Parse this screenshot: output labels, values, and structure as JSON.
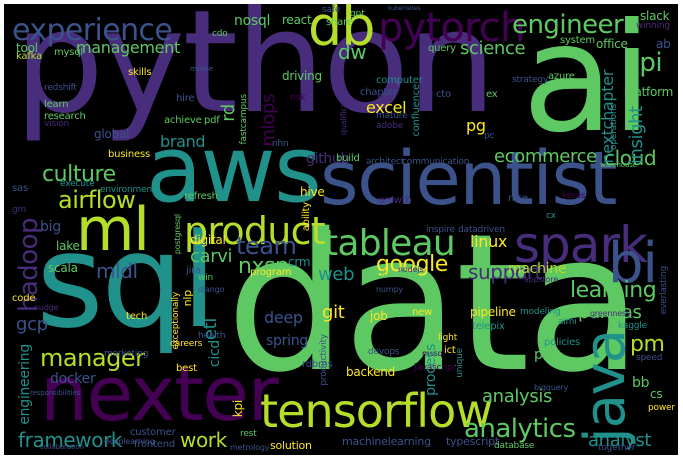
{
  "title": "",
  "palette": {
    "background": "#000000",
    "green": "#5ec962",
    "lime": "#b5de2b",
    "yellow": "#fde725",
    "teal": "#21918c",
    "blue": "#3b528b",
    "purple": "#440154",
    "indigo": "#472d7b",
    "cyan": "#1fa187"
  },
  "words": [
    {
      "text": "python",
      "color": "#472d7b"
    },
    {
      "text": "data",
      "color": "#5ec962"
    },
    {
      "text": "ai",
      "color": "#5ec962"
    },
    {
      "text": "sql",
      "color": "#21918c"
    },
    {
      "text": "aws",
      "color": "#21918c"
    },
    {
      "text": "scientist",
      "color": "#3b528b"
    },
    {
      "text": "nexter",
      "color": "#440154"
    },
    {
      "text": "tensorflow",
      "color": "#b5de2b"
    },
    {
      "text": "ml",
      "color": "#b5de2b"
    },
    {
      "text": "spark",
      "color": "#472d7b"
    },
    {
      "text": "java",
      "color": "#21918c"
    },
    {
      "text": "bi",
      "color": "#3b528b"
    },
    {
      "text": "product",
      "color": "#b5de2b"
    },
    {
      "text": "tableau",
      "color": "#5ec962"
    },
    {
      "text": "pytorch",
      "color": "#440154"
    },
    {
      "text": "db",
      "color": "#b5de2b"
    },
    {
      "text": "experience",
      "color": "#3b528b"
    },
    {
      "text": "engineer",
      "color": "#5ec962"
    },
    {
      "text": "api",
      "color": "#5ec962"
    },
    {
      "text": "analytics",
      "color": "#5ec962"
    },
    {
      "text": "hadoop",
      "color": "#472d7b"
    },
    {
      "text": "airflow",
      "color": "#b5de2b"
    },
    {
      "text": "team",
      "color": "#3b528b"
    },
    {
      "text": "google",
      "color": "#fde725"
    },
    {
      "text": "manager",
      "color": "#b5de2b"
    },
    {
      "text": "culture",
      "color": "#5ec962"
    },
    {
      "text": "mldl",
      "color": "#3b528b"
    },
    {
      "text": "carvi",
      "color": "#5ec962"
    },
    {
      "text": "nxsp",
      "color": "#5ec962"
    },
    {
      "text": "learning",
      "color": "#5ec962"
    },
    {
      "text": "pandas",
      "color": "#5ec962"
    },
    {
      "text": "support",
      "color": "#472d7b"
    },
    {
      "text": "framework",
      "color": "#21918c"
    },
    {
      "text": "work",
      "color": "#b5de2b"
    },
    {
      "text": "analysis",
      "color": "#5ec962"
    },
    {
      "text": "analyst",
      "color": "#21918c"
    },
    {
      "text": "cloud",
      "color": "#5ec962"
    },
    {
      "text": "ecommerce",
      "color": "#5ec962"
    },
    {
      "text": "science",
      "color": "#5ec962"
    },
    {
      "text": "management",
      "color": "#5ec962"
    },
    {
      "text": "dw",
      "color": "#5ec962"
    },
    {
      "text": "excel",
      "color": "#fde725"
    },
    {
      "text": "mlops",
      "color": "#440154"
    },
    {
      "text": "rd",
      "color": "#5ec962"
    },
    {
      "text": "brand",
      "color": "#21918c"
    },
    {
      "text": "insight",
      "color": "#21918c"
    },
    {
      "text": "nextchapter",
      "color": "#21918c"
    },
    {
      "text": "pg",
      "color": "#fde725"
    },
    {
      "text": "pm",
      "color": "#b5de2b"
    },
    {
      "text": "git",
      "color": "#fde725"
    },
    {
      "text": "etl",
      "color": "#21918c"
    },
    {
      "text": "deep",
      "color": "#3b528b"
    },
    {
      "text": "spring",
      "color": "#3b528b"
    },
    {
      "text": "cicd",
      "color": "#21918c"
    },
    {
      "text": "gcp",
      "color": "#3b528b"
    },
    {
      "text": "docker",
      "color": "#3b528b"
    },
    {
      "text": "engineering",
      "color": "#21918c"
    },
    {
      "text": "web",
      "color": "#21918c"
    },
    {
      "text": "linux",
      "color": "#fde725"
    },
    {
      "text": "machine",
      "color": "#b5de2b"
    },
    {
      "text": "github",
      "color": "#472d7b"
    },
    {
      "text": "nosql",
      "color": "#5ec962"
    },
    {
      "text": "react",
      "color": "#5ec962"
    },
    {
      "text": "share",
      "color": "#5ec962"
    },
    {
      "text": "safe",
      "color": "#3b528b"
    },
    {
      "text": "kubernetes",
      "color": "#3b528b"
    },
    {
      "text": "slack",
      "color": "#5ec962"
    },
    {
      "text": "winning",
      "color": "#472d7b"
    },
    {
      "text": "tool",
      "color": "#5ec962"
    },
    {
      "text": "mysql",
      "color": "#5ec962"
    },
    {
      "text": "kafka",
      "color": "#b5de2b"
    },
    {
      "text": "cdo",
      "color": "#5ec962"
    },
    {
      "text": "driving",
      "color": "#5ec962"
    },
    {
      "text": "computer",
      "color": "#21918c"
    },
    {
      "text": "query",
      "color": "#5ec962"
    },
    {
      "text": "system",
      "color": "#5ec962"
    },
    {
      "text": "office",
      "color": "#5ec962"
    },
    {
      "text": "ab",
      "color": "#3b528b"
    },
    {
      "text": "skills",
      "color": "#fde725"
    },
    {
      "text": "redshift",
      "color": "#3b528b"
    },
    {
      "text": "learn",
      "color": "#5ec962"
    },
    {
      "text": "research",
      "color": "#5ec962"
    },
    {
      "text": "vision",
      "color": "#472d7b"
    },
    {
      "text": "hire",
      "color": "#3b528b"
    },
    {
      "text": "chapter",
      "color": "#3b528b"
    },
    {
      "text": "confluence",
      "color": "#21918c"
    },
    {
      "text": "cto",
      "color": "#3b528b"
    },
    {
      "text": "azure",
      "color": "#5ec962"
    },
    {
      "text": "strategy",
      "color": "#3b528b"
    },
    {
      "text": "platform",
      "color": "#5ec962"
    },
    {
      "text": "operations",
      "color": "#21918c"
    },
    {
      "text": "global",
      "color": "#3b528b"
    },
    {
      "text": "business",
      "color": "#fde725"
    },
    {
      "text": "achieve",
      "color": "#5ec962"
    },
    {
      "text": "pdf",
      "color": "#5ec962"
    },
    {
      "text": "fastcampus",
      "color": "#5ec962"
    },
    {
      "text": "risk",
      "color": "#440154"
    },
    {
      "text": "mature",
      "color": "#3b528b"
    },
    {
      "text": "adobe",
      "color": "#472d7b"
    },
    {
      "text": "qualifications",
      "color": "#472d7b"
    },
    {
      "text": "nhn",
      "color": "#3b528b"
    },
    {
      "text": "build",
      "color": "#5ec962"
    },
    {
      "text": "architect",
      "color": "#3b528b"
    },
    {
      "text": "communication",
      "color": "#3b528b"
    },
    {
      "text": "execute",
      "color": "#21918c"
    },
    {
      "text": "environment",
      "color": "#21918c"
    },
    {
      "text": "refresh",
      "color": "#5ec962"
    },
    {
      "text": "hive",
      "color": "#fde725"
    },
    {
      "text": "growth",
      "color": "#472d7b"
    },
    {
      "text": "nice",
      "color": "#3b528b"
    },
    {
      "text": "warehouse",
      "color": "#5ec962"
    },
    {
      "text": "keras",
      "color": "#440154"
    },
    {
      "text": "everlasting",
      "color": "#3b528b"
    },
    {
      "text": "sas",
      "color": "#3b528b"
    },
    {
      "text": "gm",
      "color": "#472d7b"
    },
    {
      "text": "big",
      "color": "#3b528b"
    },
    {
      "text": "lake",
      "color": "#5ec962"
    },
    {
      "text": "scala",
      "color": "#5ec962"
    },
    {
      "text": "digital",
      "color": "#fde725"
    },
    {
      "text": "postgresql",
      "color": "#5ec962"
    },
    {
      "text": "ability",
      "color": "#fde725"
    },
    {
      "text": "inspire",
      "color": "#3b528b"
    },
    {
      "text": "datadriven",
      "color": "#3b528b"
    },
    {
      "text": "jira",
      "color": "#3b528b"
    },
    {
      "text": "crm",
      "color": "#21918c"
    },
    {
      "text": "program",
      "color": "#fde725"
    },
    {
      "text": "win",
      "color": "#5ec962"
    },
    {
      "text": "test",
      "color": "#5ec962"
    },
    {
      "text": "nodejs",
      "color": "#472d7b"
    },
    {
      "text": "appstore",
      "color": "#472d7b"
    },
    {
      "text": "code",
      "color": "#fde725"
    },
    {
      "text": "nudge",
      "color": "#472d7b"
    },
    {
      "text": "nlp",
      "color": "#fde725"
    },
    {
      "text": "django",
      "color": "#3b528b"
    },
    {
      "text": "numpy",
      "color": "#3b528b"
    },
    {
      "text": "tech",
      "color": "#fde725"
    },
    {
      "text": "exceptionally",
      "color": "#fde725"
    },
    {
      "text": "job",
      "color": "#fde725"
    },
    {
      "text": "pipeline",
      "color": "#fde725"
    },
    {
      "text": "telepix",
      "color": "#21918c"
    },
    {
      "text": "aimi",
      "color": "#21918c"
    },
    {
      "text": "kaggle",
      "color": "#21918c"
    },
    {
      "text": "modeling",
      "color": "#21918c"
    },
    {
      "text": "new",
      "color": "#fde725"
    },
    {
      "text": "light",
      "color": "#fde725"
    },
    {
      "text": "ict",
      "color": "#fde725"
    },
    {
      "text": "greenness",
      "color": "#472d7b"
    },
    {
      "text": "careers",
      "color": "#fde725"
    },
    {
      "text": "health",
      "color": "#3b528b"
    },
    {
      "text": "best",
      "color": "#fde725"
    },
    {
      "text": "marketing",
      "color": "#3b528b"
    },
    {
      "text": "productivity",
      "color": "#3b528b"
    },
    {
      "text": "devops",
      "color": "#3b528b"
    },
    {
      "text": "rdbms",
      "color": "#3b528b"
    },
    {
      "text": "backend",
      "color": "#fde725"
    },
    {
      "text": "javascript",
      "color": "#440154"
    },
    {
      "text": "unique",
      "color": "#21918c"
    },
    {
      "text": "mssql",
      "color": "#440154"
    },
    {
      "text": "policies",
      "color": "#21918c"
    },
    {
      "text": "speed",
      "color": "#3b528b"
    },
    {
      "text": "bb",
      "color": "#5ec962"
    },
    {
      "text": "cs",
      "color": "#5ec962"
    },
    {
      "text": "power",
      "color": "#fde725"
    },
    {
      "text": "bigquery",
      "color": "#3b528b"
    },
    {
      "text": "customer",
      "color": "#3b528b"
    },
    {
      "text": "frontend",
      "color": "#3b528b"
    },
    {
      "text": "rest",
      "color": "#5ec962"
    },
    {
      "text": "solution",
      "color": "#fde725"
    },
    {
      "text": "machinelearning",
      "color": "#3b528b"
    },
    {
      "text": "typescript",
      "color": "#3b528b"
    },
    {
      "text": "database",
      "color": "#5ec962"
    },
    {
      "text": "together",
      "color": "#3b528b"
    },
    {
      "text": "deeplearning",
      "color": "#3b528b"
    },
    {
      "text": "metrology",
      "color": "#3b528b"
    },
    {
      "text": "responsibilities",
      "color": "#3b528b"
    },
    {
      "text": "collaboration",
      "color": "#3b528b"
    },
    {
      "text": "kpi",
      "color": "#fde725"
    },
    {
      "text": "pl",
      "color": "#5ec962"
    },
    {
      "text": "gpt",
      "color": "#5ec962"
    },
    {
      "text": "mobile",
      "color": "#3b528b"
    },
    {
      "text": "cx",
      "color": "#21918c"
    },
    {
      "text": "ex",
      "color": "#5ec962"
    },
    {
      "text": "pc",
      "color": "#3b528b"
    },
    {
      "text": "process",
      "color": "#21918c"
    }
  ]
}
